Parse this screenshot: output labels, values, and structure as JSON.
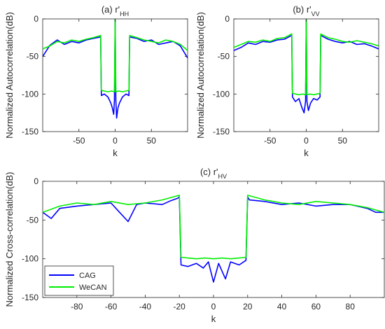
{
  "chart_data": [
    {
      "type": "line",
      "title": "(a) r'",
      "title_sub": "HH",
      "xlabel": "k",
      "ylabel": "Normalized Autocorrelation(dB)",
      "xlim": [
        -100,
        100
      ],
      "ylim": [
        -150,
        0
      ],
      "xticks": [
        -50,
        0,
        50
      ],
      "yticks": [
        0,
        -50,
        -100,
        -150
      ],
      "series": [
        {
          "name": "CAG",
          "color": "#0000ff",
          "x": [
            -100,
            -90,
            -80,
            -70,
            -60,
            -50,
            -40,
            -30,
            -20,
            -19,
            -15,
            -10,
            -6,
            -4,
            -2,
            -1,
            0,
            1,
            2,
            4,
            6,
            10,
            15,
            19,
            20,
            30,
            40,
            50,
            60,
            70,
            80,
            90,
            100
          ],
          "y": [
            -50,
            -35,
            -28,
            -34,
            -30,
            -32,
            -28,
            -26,
            -24,
            -102,
            -100,
            -104,
            -112,
            -118,
            -127,
            -108,
            0,
            -108,
            -132,
            -118,
            -112,
            -104,
            -100,
            -102,
            -24,
            -26,
            -30,
            -28,
            -34,
            -32,
            -30,
            -36,
            -52
          ]
        },
        {
          "name": "WeCAN",
          "color": "#00ee00",
          "x": [
            -100,
            -90,
            -80,
            -70,
            -60,
            -50,
            -40,
            -30,
            -20,
            -19,
            -15,
            -10,
            -5,
            -1,
            0,
            1,
            5,
            10,
            15,
            19,
            20,
            30,
            40,
            50,
            60,
            70,
            80,
            90,
            100
          ],
          "y": [
            -40,
            -36,
            -30,
            -32,
            -28,
            -30,
            -27,
            -25,
            -22,
            -95,
            -96,
            -97,
            -96,
            -97,
            0,
            -97,
            -96,
            -97,
            -96,
            -95,
            -22,
            -25,
            -28,
            -30,
            -32,
            -28,
            -30,
            -34,
            -42
          ]
        }
      ]
    },
    {
      "type": "line",
      "title": "(b) r'",
      "title_sub": "VV",
      "xlabel": "k",
      "ylabel": "Normalized Autocorrelation(dB)",
      "xlim": [
        -100,
        100
      ],
      "ylim": [
        -150,
        0
      ],
      "xticks": [
        -50,
        0,
        50
      ],
      "yticks": [
        0,
        -50,
        -100,
        -150
      ],
      "series": [
        {
          "name": "CAG",
          "color": "#0000ff",
          "x": [
            -100,
            -90,
            -80,
            -70,
            -60,
            -50,
            -40,
            -30,
            -20,
            -19,
            -15,
            -10,
            -6,
            -3,
            -1,
            0,
            1,
            3,
            6,
            10,
            15,
            19,
            20,
            30,
            40,
            50,
            60,
            70,
            80,
            90,
            100
          ],
          "y": [
            -42,
            -38,
            -32,
            -34,
            -30,
            -31,
            -28,
            -27,
            -22,
            -104,
            -110,
            -106,
            -118,
            -125,
            -110,
            0,
            -110,
            -122,
            -112,
            -106,
            -108,
            -104,
            -22,
            -27,
            -30,
            -32,
            -30,
            -34,
            -33,
            -36,
            -40
          ]
        },
        {
          "name": "WeCAN",
          "color": "#00ee00",
          "x": [
            -100,
            -90,
            -80,
            -70,
            -60,
            -50,
            -40,
            -30,
            -20,
            -19,
            -15,
            -10,
            -5,
            -1,
            0,
            1,
            5,
            10,
            15,
            19,
            20,
            30,
            40,
            50,
            60,
            70,
            80,
            90,
            100
          ],
          "y": [
            -38,
            -34,
            -30,
            -31,
            -28,
            -30,
            -26,
            -25,
            -20,
            -99,
            -100,
            -101,
            -100,
            -101,
            0,
            -101,
            -100,
            -101,
            -100,
            -99,
            -20,
            -25,
            -27,
            -30,
            -31,
            -29,
            -31,
            -33,
            -36
          ]
        }
      ]
    },
    {
      "type": "line",
      "title": "(c) r'",
      "title_sub": "HV",
      "xlabel": "k",
      "ylabel": "Normalized Cross-correlation(dB)",
      "xlim": [
        -100,
        100
      ],
      "ylim": [
        -150,
        0
      ],
      "xticks": [
        -80,
        -60,
        -40,
        -20,
        0,
        20,
        40,
        60,
        80
      ],
      "yticks": [
        0,
        -50,
        -100,
        -150
      ],
      "legend": "bottom-left",
      "series": [
        {
          "name": "CAG",
          "color": "#0000ff",
          "x": [
            -100,
            -95,
            -90,
            -80,
            -70,
            -60,
            -55,
            -50,
            -45,
            -40,
            -30,
            -25,
            -21,
            -20,
            -19,
            -15,
            -10,
            -6,
            -3,
            0,
            3,
            7,
            10,
            15,
            19,
            20,
            21,
            30,
            40,
            50,
            60,
            70,
            80,
            90,
            95,
            100
          ],
          "y": [
            -40,
            -48,
            -35,
            -32,
            -30,
            -28,
            -40,
            -52,
            -30,
            -28,
            -30,
            -25,
            -22,
            -20,
            -108,
            -110,
            -106,
            -112,
            -104,
            -130,
            -106,
            -126,
            -104,
            -108,
            -102,
            -20,
            -24,
            -26,
            -30,
            -28,
            -32,
            -30,
            -30,
            -35,
            -40,
            -40
          ]
        },
        {
          "name": "WeCAN",
          "color": "#00ee00",
          "x": [
            -100,
            -90,
            -80,
            -70,
            -60,
            -50,
            -40,
            -30,
            -20,
            -19,
            -15,
            -10,
            -5,
            0,
            5,
            10,
            15,
            19,
            20,
            30,
            40,
            50,
            60,
            70,
            80,
            90,
            100
          ],
          "y": [
            -40,
            -32,
            -28,
            -30,
            -26,
            -30,
            -28,
            -24,
            -18,
            -98,
            -99,
            -100,
            -99,
            -100,
            -99,
            -100,
            -99,
            -98,
            -18,
            -24,
            -28,
            -30,
            -26,
            -28,
            -30,
            -34,
            -40
          ]
        }
      ]
    }
  ]
}
